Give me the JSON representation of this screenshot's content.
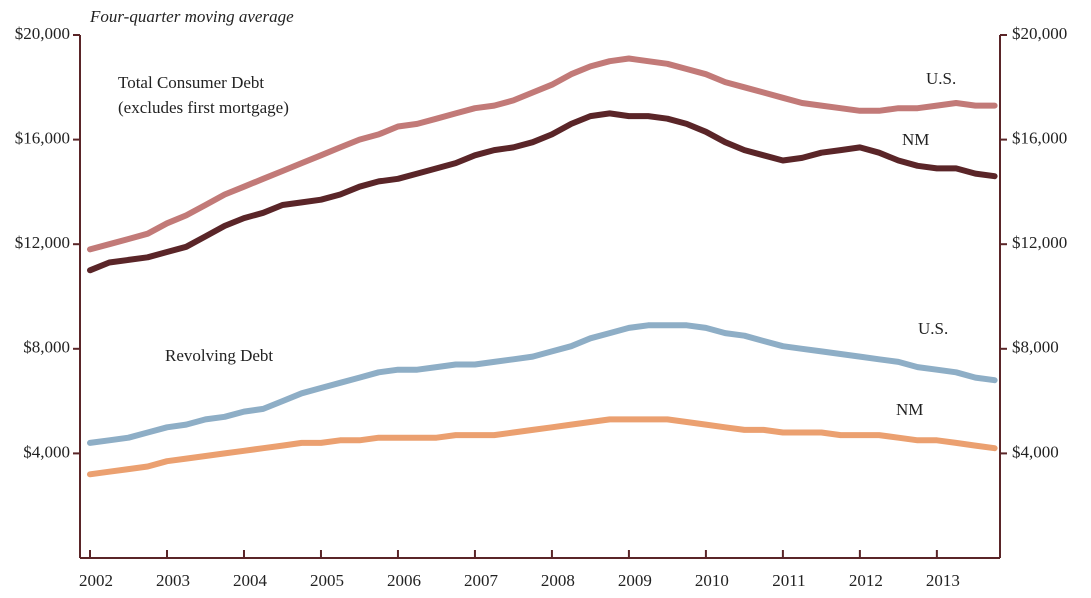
{
  "chart_data": {
    "type": "line",
    "subtitle": "Four-quarter moving average",
    "annotations": [
      "Total Consumer Debt",
      "(excludes first mortgage)",
      "Revolving Debt"
    ],
    "x": [
      2002,
      2002.25,
      2002.5,
      2002.75,
      2003,
      2003.25,
      2003.5,
      2003.75,
      2004,
      2004.25,
      2004.5,
      2004.75,
      2005,
      2005.25,
      2005.5,
      2005.75,
      2006,
      2006.25,
      2006.5,
      2006.75,
      2007,
      2007.25,
      2007.5,
      2007.75,
      2008,
      2008.25,
      2008.5,
      2008.75,
      2009,
      2009.25,
      2009.5,
      2009.75,
      2010,
      2010.25,
      2010.5,
      2010.75,
      2011,
      2011.25,
      2011.5,
      2011.75,
      2012,
      2012.25,
      2012.5,
      2012.75,
      2013,
      2013.25,
      2013.5,
      2013.75
    ],
    "xlim": [
      2001.87,
      2013.82
    ],
    "xticks": [
      2002,
      2003,
      2004,
      2005,
      2006,
      2007,
      2008,
      2009,
      2010,
      2011,
      2012,
      2013
    ],
    "ylim": [
      0,
      20000
    ],
    "yticks": [
      {
        "value": 4000,
        "label": "$4,000"
      },
      {
        "value": 8000,
        "label": "$8,000"
      },
      {
        "value": 12000,
        "label": "$12,000"
      },
      {
        "value": 16000,
        "label": "$16,000"
      },
      {
        "value": 20000,
        "label": "$20,000"
      }
    ],
    "series": [
      {
        "name": "U.S.",
        "color": "#c27a78",
        "values": [
          11800,
          12000,
          12200,
          12400,
          12800,
          13100,
          13500,
          13900,
          14200,
          14500,
          14800,
          15100,
          15400,
          15700,
          16000,
          16200,
          16500,
          16600,
          16800,
          17000,
          17200,
          17300,
          17500,
          17800,
          18100,
          18500,
          18800,
          19000,
          19100,
          19000,
          18900,
          18700,
          18500,
          18200,
          18000,
          17800,
          17600,
          17400,
          17300,
          17200,
          17100,
          17100,
          17200,
          17200,
          17300,
          17400,
          17300,
          17300
        ]
      },
      {
        "name": "NM",
        "color": "#5a2528",
        "values": [
          11000,
          11300,
          11400,
          11500,
          11700,
          11900,
          12300,
          12700,
          13000,
          13200,
          13500,
          13600,
          13700,
          13900,
          14200,
          14400,
          14500,
          14700,
          14900,
          15100,
          15400,
          15600,
          15700,
          15900,
          16200,
          16600,
          16900,
          17000,
          16900,
          16900,
          16800,
          16600,
          16300,
          15900,
          15600,
          15400,
          15200,
          15300,
          15500,
          15600,
          15700,
          15500,
          15200,
          15000,
          14900,
          14900,
          14700,
          14600
        ]
      },
      {
        "name": "U.S.",
        "color": "#8eaec6",
        "values": [
          4400,
          4500,
          4600,
          4800,
          5000,
          5100,
          5300,
          5400,
          5600,
          5700,
          6000,
          6300,
          6500,
          6700,
          6900,
          7100,
          7200,
          7200,
          7300,
          7400,
          7400,
          7500,
          7600,
          7700,
          7900,
          8100,
          8400,
          8600,
          8800,
          8900,
          8900,
          8900,
          8800,
          8600,
          8500,
          8300,
          8100,
          8000,
          7900,
          7800,
          7700,
          7600,
          7500,
          7300,
          7200,
          7100,
          6900,
          6800
        ]
      },
      {
        "name": "NM",
        "color": "#eba070",
        "values": [
          3200,
          3300,
          3400,
          3500,
          3700,
          3800,
          3900,
          4000,
          4100,
          4200,
          4300,
          4400,
          4400,
          4500,
          4500,
          4600,
          4600,
          4600,
          4600,
          4700,
          4700,
          4700,
          4800,
          4900,
          5000,
          5100,
          5200,
          5300,
          5300,
          5300,
          5300,
          5200,
          5100,
          5000,
          4900,
          4900,
          4800,
          4800,
          4800,
          4700,
          4700,
          4700,
          4600,
          4500,
          4500,
          4400,
          4300,
          4200
        ]
      }
    ]
  }
}
